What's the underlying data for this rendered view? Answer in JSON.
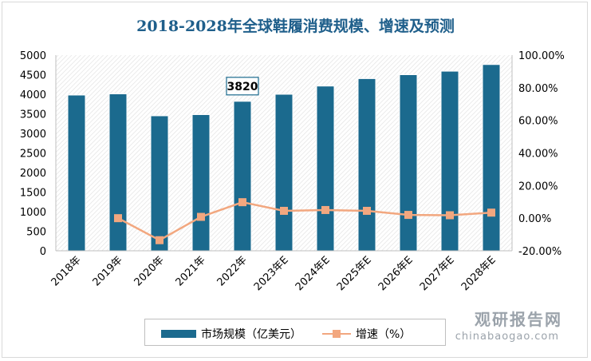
{
  "chart_data": {
    "type": "bar",
    "title": "2018-2028年全球鞋履消费规模、增速及预测",
    "categories": [
      "2018年",
      "2019年",
      "2020年",
      "2021年",
      "2022年",
      "2023年E",
      "2024年E",
      "2025年E",
      "2026年E",
      "2027年E",
      "2028年E"
    ],
    "series": [
      {
        "name": "市场规模（亿美元）",
        "type": "bar",
        "axis": "left",
        "color": "#1b6a8e",
        "values": [
          3980,
          4010,
          3450,
          3480,
          3820,
          4000,
          4210,
          4400,
          4500,
          4590,
          4760
        ]
      },
      {
        "name": "增速（%）",
        "type": "line",
        "axis": "right",
        "color": "#f2a77f",
        "values": [
          null,
          0.0,
          -13.5,
          0.8,
          9.8,
          4.5,
          5.0,
          4.5,
          2.0,
          1.8,
          3.4
        ]
      }
    ],
    "y_left": {
      "min": 0,
      "max": 5000,
      "step": 500,
      "ticks": [
        "0",
        "500",
        "1000",
        "1500",
        "2000",
        "2500",
        "3000",
        "3500",
        "4000",
        "4500",
        "5000"
      ]
    },
    "y_right": {
      "min": -20,
      "max": 100,
      "step": 20,
      "ticks": [
        "-20.00%",
        "0.00%",
        "20.00%",
        "40.00%",
        "60.00%",
        "80.00%",
        "100.00%"
      ]
    },
    "data_labels": [
      {
        "category": "2022年",
        "text": "3820"
      }
    ],
    "legend": {
      "position": "bottom"
    },
    "grid": false
  },
  "watermark": {
    "main": "观研报告网",
    "sub": "chinabaogao.com"
  }
}
